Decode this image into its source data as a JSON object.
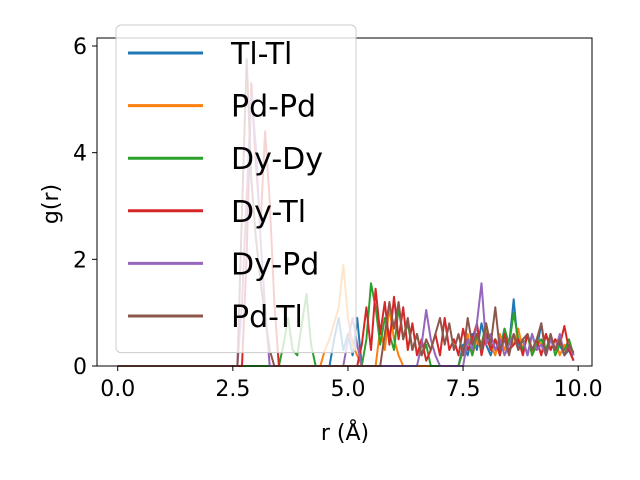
{
  "chart_data": {
    "type": "line",
    "title": "",
    "xlabel": "r (Å)",
    "ylabel": "g(r)",
    "xlim": [
      -0.45,
      10.3
    ],
    "ylim": [
      0,
      6.15
    ],
    "xticks": [
      0.0,
      2.5,
      5.0,
      7.5,
      10.0
    ],
    "xtick_labels": [
      "0.0",
      "2.5",
      "5.0",
      "7.5",
      "10.0"
    ],
    "yticks": [
      0,
      2,
      4,
      6
    ],
    "ytick_labels": [
      "0",
      "2",
      "4",
      "6"
    ],
    "grid": false,
    "legend_position": "top-left",
    "series": [
      {
        "name": "Tl-Tl",
        "color": "#1f77b4",
        "x": [
          0.0,
          4.6,
          4.7,
          4.8,
          4.9,
          5.0,
          5.1,
          5.2,
          5.3,
          7.4,
          7.5,
          7.6,
          7.7,
          7.8,
          7.9,
          8.0,
          8.1,
          8.2,
          8.3,
          8.4,
          8.5,
          8.6,
          8.7,
          8.8,
          8.9,
          9.0,
          9.1,
          9.2,
          9.3,
          9.4,
          9.5,
          9.6,
          9.7,
          9.8,
          9.9
        ],
        "y": [
          0.0,
          0.0,
          0.5,
          0.9,
          0.3,
          0.6,
          0.2,
          0.9,
          0.0,
          0.0,
          0.4,
          0.2,
          0.6,
          0.3,
          0.8,
          0.4,
          0.2,
          0.5,
          0.3,
          0.7,
          0.4,
          1.25,
          0.3,
          0.5,
          0.2,
          0.6,
          0.3,
          0.8,
          0.2,
          0.5,
          0.3,
          0.4,
          0.2,
          0.3,
          0.1
        ]
      },
      {
        "name": "Pd-Pd",
        "color": "#ff7f0e",
        "x": [
          0.0,
          4.4,
          4.5,
          4.6,
          4.7,
          4.8,
          4.9,
          5.0,
          5.1,
          5.2,
          5.3,
          5.6,
          5.7,
          5.8,
          5.9,
          6.0,
          6.1,
          6.2,
          7.4,
          7.5,
          7.6,
          7.7,
          7.8,
          7.9,
          8.0,
          8.1,
          8.2,
          8.3,
          8.4,
          8.5,
          8.6,
          8.7,
          8.8,
          8.9,
          9.0,
          9.1,
          9.2,
          9.3,
          9.4,
          9.5,
          9.6,
          9.7,
          9.8,
          9.9
        ],
        "y": [
          0.0,
          0.0,
          0.3,
          0.5,
          0.8,
          1.1,
          1.9,
          0.9,
          0.4,
          0.2,
          0.0,
          0.0,
          0.7,
          0.3,
          1.1,
          0.5,
          0.2,
          0.0,
          0.0,
          0.3,
          0.6,
          0.2,
          0.5,
          0.3,
          0.7,
          0.4,
          0.2,
          0.6,
          0.3,
          0.5,
          0.4,
          0.7,
          0.3,
          0.6,
          0.2,
          0.5,
          0.4,
          0.6,
          0.3,
          0.5,
          0.2,
          0.4,
          0.3,
          0.2
        ]
      },
      {
        "name": "Dy-Dy",
        "color": "#2ca02c",
        "x": [
          0.0,
          3.5,
          3.6,
          3.7,
          3.8,
          3.9,
          4.0,
          4.1,
          4.2,
          4.3,
          5.3,
          5.4,
          5.5,
          5.6,
          5.7,
          5.8,
          5.9,
          6.0,
          6.1,
          6.2,
          6.3,
          6.4,
          6.5,
          6.6,
          6.7,
          6.8,
          7.4,
          7.5,
          7.6,
          7.7,
          7.8,
          7.9,
          8.0,
          8.1,
          8.2,
          8.3,
          8.4,
          8.5,
          8.6,
          8.7,
          8.8,
          8.9,
          9.0,
          9.1,
          9.2,
          9.3,
          9.4,
          9.5,
          9.6,
          9.7,
          9.8,
          9.9
        ],
        "y": [
          0.0,
          0.0,
          0.4,
          0.9,
          0.3,
          0.2,
          0.8,
          1.35,
          0.4,
          0.0,
          0.0,
          0.5,
          1.55,
          1.1,
          0.4,
          0.9,
          0.6,
          0.3,
          1.1,
          0.5,
          0.8,
          0.3,
          0.6,
          0.2,
          0.4,
          0.0,
          0.0,
          0.3,
          0.5,
          0.2,
          0.6,
          0.4,
          0.8,
          0.3,
          0.5,
          0.2,
          0.7,
          0.4,
          1.0,
          0.5,
          0.3,
          0.6,
          0.2,
          0.4,
          0.5,
          0.3,
          0.6,
          0.2,
          0.4,
          0.3,
          0.5,
          0.2
        ]
      },
      {
        "name": "Dy-Tl",
        "color": "#d62728",
        "x": [
          0.0,
          2.7,
          2.8,
          2.9,
          3.0,
          3.1,
          3.2,
          3.3,
          3.4,
          3.5,
          5.2,
          5.3,
          5.4,
          5.5,
          5.6,
          5.7,
          5.8,
          5.9,
          6.0,
          6.1,
          6.2,
          6.3,
          6.4,
          6.5,
          6.6,
          6.7,
          6.8,
          6.9,
          7.0,
          7.1,
          7.2,
          7.3,
          7.4,
          7.5,
          7.6,
          7.7,
          7.8,
          7.9,
          8.0,
          8.1,
          8.2,
          8.3,
          8.4,
          8.5,
          8.6,
          8.7,
          8.8,
          8.9,
          9.0,
          9.1,
          9.2,
          9.3,
          9.4,
          9.5,
          9.6,
          9.7,
          9.8,
          9.9
        ],
        "y": [
          0.0,
          0.0,
          2.1,
          5.3,
          3.8,
          2.6,
          4.4,
          3.1,
          1.2,
          0.0,
          0.0,
          0.4,
          1.1,
          0.3,
          1.45,
          0.6,
          1.2,
          0.4,
          1.3,
          0.5,
          1.1,
          0.3,
          0.8,
          0.2,
          0.5,
          0.1,
          0.3,
          0.6,
          0.2,
          0.9,
          0.3,
          0.5,
          0.2,
          0.7,
          0.3,
          0.5,
          0.8,
          0.2,
          0.6,
          0.3,
          0.5,
          0.2,
          0.6,
          0.3,
          0.4,
          0.5,
          0.2,
          0.6,
          0.3,
          0.5,
          0.2,
          0.6,
          0.3,
          0.5,
          0.4,
          0.75,
          0.3,
          0.1
        ]
      },
      {
        "name": "Dy-Pd",
        "color": "#9467bd",
        "x": [
          0.0,
          2.6,
          2.7,
          2.8,
          2.9,
          3.0,
          3.1,
          3.2,
          3.3,
          4.9,
          5.0,
          5.1,
          5.2,
          5.3,
          6.5,
          6.6,
          6.7,
          6.8,
          6.9,
          7.0,
          7.5,
          7.6,
          7.7,
          7.8,
          7.9,
          8.0,
          8.1,
          8.2,
          8.3,
          8.4,
          8.5,
          8.6,
          8.7,
          8.8,
          8.9,
          9.0,
          9.1,
          9.2,
          9.3,
          9.4,
          9.5,
          9.6,
          9.7,
          9.8,
          9.9
        ],
        "y": [
          0.0,
          0.0,
          1.2,
          3.2,
          5.1,
          4.1,
          2.4,
          1.1,
          0.0,
          0.0,
          0.5,
          0.9,
          0.4,
          0.0,
          0.0,
          0.4,
          1.05,
          0.5,
          0.2,
          0.0,
          0.0,
          0.5,
          0.3,
          0.8,
          1.55,
          0.4,
          0.6,
          0.3,
          0.5,
          0.2,
          0.4,
          0.6,
          0.3,
          0.5,
          0.2,
          0.6,
          0.3,
          0.4,
          0.2,
          0.5,
          0.3,
          0.6,
          0.2,
          0.4,
          0.2
        ]
      },
      {
        "name": "Pd-Tl",
        "color": "#8c564b",
        "x": [
          0.0,
          2.6,
          2.7,
          2.8,
          2.9,
          3.0,
          3.1,
          3.2,
          3.3,
          3.4,
          5.7,
          5.8,
          5.9,
          6.0,
          6.1,
          6.2,
          6.3,
          6.4,
          6.5,
          6.6,
          6.7,
          6.8,
          6.9,
          7.0,
          7.1,
          7.2,
          7.3,
          7.4,
          7.5,
          7.6,
          7.7,
          7.8,
          7.9,
          8.0,
          8.1,
          8.2,
          8.3,
          8.4,
          8.5,
          8.6,
          8.7,
          8.8,
          8.9,
          9.0,
          9.1,
          9.2,
          9.3,
          9.4,
          9.5,
          9.6,
          9.7,
          9.8,
          9.9
        ],
        "y": [
          0.0,
          0.0,
          2.9,
          5.75,
          3.5,
          2.4,
          1.6,
          0.9,
          0.3,
          0.0,
          0.0,
          0.6,
          1.2,
          0.7,
          1.2,
          0.5,
          0.9,
          0.3,
          0.6,
          0.2,
          0.5,
          0.3,
          0.6,
          0.9,
          0.4,
          0.8,
          0.3,
          0.6,
          0.2,
          0.9,
          0.4,
          0.6,
          0.3,
          0.8,
          0.4,
          1.1,
          0.3,
          0.5,
          0.2,
          0.6,
          0.3,
          0.5,
          0.6,
          0.3,
          0.5,
          0.8,
          0.2,
          0.6,
          0.3,
          0.5,
          0.2,
          0.4,
          0.25
        ]
      }
    ]
  }
}
